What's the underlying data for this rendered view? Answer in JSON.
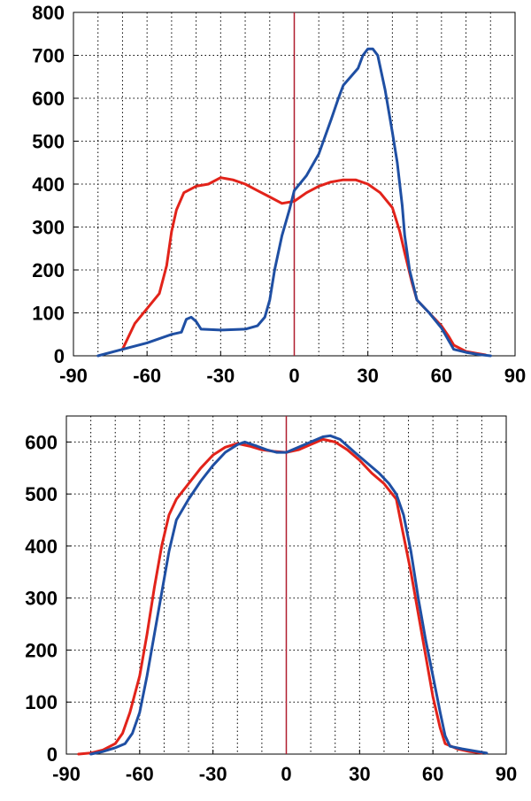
{
  "colors": {
    "red_series": "#e2231a",
    "blue_series": "#1f4fa3",
    "zero_line": "#b01c2e"
  },
  "chart_data": [
    {
      "type": "line",
      "title": "",
      "xlabel": "",
      "ylabel": "",
      "xlim": [
        -90,
        90
      ],
      "ylim": [
        0,
        800
      ],
      "x_ticks": [
        -90,
        -60,
        -30,
        0,
        30,
        60,
        90
      ],
      "y_ticks": [
        0,
        100,
        200,
        300,
        400,
        500,
        600,
        700,
        800
      ],
      "x_tick_labels": [
        "-90",
        "-60",
        "-30",
        "0",
        "30",
        "60",
        "90"
      ],
      "y_tick_labels": [
        "0",
        "100",
        "200",
        "300",
        "400",
        "500",
        "600",
        "700",
        "800"
      ],
      "x_grid_step": 10,
      "grid": true,
      "vertical_marker_x": 0,
      "series": [
        {
          "color_key": "red_series",
          "points": [
            [
              -70,
              15
            ],
            [
              -65,
              75
            ],
            [
              -60,
              110
            ],
            [
              -55,
              145
            ],
            [
              -52,
              210
            ],
            [
              -50,
              290
            ],
            [
              -48,
              340
            ],
            [
              -45,
              380
            ],
            [
              -40,
              395
            ],
            [
              -35,
              400
            ],
            [
              -30,
              415
            ],
            [
              -25,
              410
            ],
            [
              -20,
              400
            ],
            [
              -15,
              385
            ],
            [
              -10,
              370
            ],
            [
              -5,
              355
            ],
            [
              0,
              360
            ],
            [
              5,
              380
            ],
            [
              10,
              395
            ],
            [
              15,
              405
            ],
            [
              20,
              410
            ],
            [
              25,
              410
            ],
            [
              30,
              400
            ],
            [
              35,
              380
            ],
            [
              40,
              345
            ],
            [
              43,
              290
            ],
            [
              45,
              240
            ],
            [
              48,
              170
            ],
            [
              50,
              130
            ],
            [
              55,
              100
            ],
            [
              60,
              70
            ],
            [
              63,
              45
            ],
            [
              65,
              25
            ],
            [
              70,
              10
            ],
            [
              75,
              5
            ],
            [
              78,
              2
            ]
          ]
        },
        {
          "color_key": "blue_series",
          "points": [
            [
              -80,
              0
            ],
            [
              -70,
              15
            ],
            [
              -60,
              30
            ],
            [
              -50,
              50
            ],
            [
              -46,
              55
            ],
            [
              -44,
              85
            ],
            [
              -42,
              90
            ],
            [
              -40,
              80
            ],
            [
              -38,
              62
            ],
            [
              -30,
              60
            ],
            [
              -20,
              62
            ],
            [
              -15,
              70
            ],
            [
              -12,
              90
            ],
            [
              -10,
              130
            ],
            [
              -8,
              200
            ],
            [
              -5,
              280
            ],
            [
              -2,
              340
            ],
            [
              0,
              385
            ],
            [
              5,
              420
            ],
            [
              10,
              470
            ],
            [
              15,
              550
            ],
            [
              18,
              600
            ],
            [
              20,
              630
            ],
            [
              23,
              650
            ],
            [
              26,
              670
            ],
            [
              28,
              700
            ],
            [
              30,
              715
            ],
            [
              32,
              715
            ],
            [
              34,
              700
            ],
            [
              37,
              620
            ],
            [
              40,
              520
            ],
            [
              42,
              450
            ],
            [
              44,
              350
            ],
            [
              45,
              280
            ],
            [
              47,
              200
            ],
            [
              50,
              130
            ],
            [
              55,
              100
            ],
            [
              60,
              65
            ],
            [
              63,
              35
            ],
            [
              65,
              15
            ],
            [
              70,
              8
            ],
            [
              75,
              3
            ],
            [
              80,
              0
            ]
          ]
        }
      ]
    },
    {
      "type": "line",
      "title": "",
      "xlabel": "",
      "ylabel": "",
      "xlim": [
        -90,
        90
      ],
      "ylim": [
        0,
        650
      ],
      "x_ticks": [
        -90,
        -60,
        -30,
        0,
        30,
        60,
        90
      ],
      "y_ticks": [
        0,
        100,
        200,
        300,
        400,
        500,
        600
      ],
      "x_tick_labels": [
        "-90",
        "-60",
        "-30",
        "0",
        "30",
        "60",
        "90"
      ],
      "y_tick_labels": [
        "0",
        "100",
        "200",
        "300",
        "400",
        "500",
        "600"
      ],
      "x_grid_step": 10,
      "y_grid_step": 100,
      "grid": true,
      "vertical_marker_x": 0,
      "series": [
        {
          "color_key": "red_series",
          "points": [
            [
              -85,
              0
            ],
            [
              -80,
              2
            ],
            [
              -75,
              8
            ],
            [
              -70,
              20
            ],
            [
              -67,
              40
            ],
            [
              -64,
              80
            ],
            [
              -60,
              150
            ],
            [
              -57,
              230
            ],
            [
              -54,
              320
            ],
            [
              -51,
              400
            ],
            [
              -48,
              460
            ],
            [
              -45,
              490
            ],
            [
              -40,
              520
            ],
            [
              -35,
              550
            ],
            [
              -30,
              575
            ],
            [
              -25,
              590
            ],
            [
              -20,
              597
            ],
            [
              -15,
              592
            ],
            [
              -10,
              585
            ],
            [
              -5,
              582
            ],
            [
              0,
              580
            ],
            [
              5,
              585
            ],
            [
              10,
              595
            ],
            [
              15,
              605
            ],
            [
              20,
              600
            ],
            [
              25,
              585
            ],
            [
              30,
              565
            ],
            [
              35,
              540
            ],
            [
              40,
              520
            ],
            [
              45,
              490
            ],
            [
              48,
              420
            ],
            [
              51,
              350
            ],
            [
              54,
              270
            ],
            [
              57,
              190
            ],
            [
              60,
              110
            ],
            [
              63,
              50
            ],
            [
              65,
              20
            ],
            [
              70,
              10
            ],
            [
              75,
              5
            ],
            [
              80,
              2
            ]
          ]
        },
        {
          "color_key": "blue_series",
          "points": [
            [
              -80,
              0
            ],
            [
              -75,
              5
            ],
            [
              -70,
              12
            ],
            [
              -66,
              20
            ],
            [
              -63,
              40
            ],
            [
              -60,
              80
            ],
            [
              -57,
              150
            ],
            [
              -54,
              230
            ],
            [
              -51,
              310
            ],
            [
              -48,
              390
            ],
            [
              -45,
              450
            ],
            [
              -40,
              490
            ],
            [
              -35,
              525
            ],
            [
              -30,
              555
            ],
            [
              -25,
              580
            ],
            [
              -20,
              595
            ],
            [
              -17,
              600
            ],
            [
              -12,
              592
            ],
            [
              -8,
              585
            ],
            [
              -4,
              580
            ],
            [
              0,
              580
            ],
            [
              5,
              590
            ],
            [
              10,
              600
            ],
            [
              15,
              610
            ],
            [
              18,
              612
            ],
            [
              22,
              605
            ],
            [
              28,
              580
            ],
            [
              33,
              560
            ],
            [
              38,
              540
            ],
            [
              42,
              520
            ],
            [
              45,
              500
            ],
            [
              48,
              460
            ],
            [
              51,
              390
            ],
            [
              54,
              300
            ],
            [
              57,
              220
            ],
            [
              60,
              150
            ],
            [
              63,
              80
            ],
            [
              65,
              35
            ],
            [
              67,
              15
            ],
            [
              72,
              10
            ],
            [
              77,
              6
            ],
            [
              82,
              2
            ]
          ]
        }
      ]
    }
  ]
}
